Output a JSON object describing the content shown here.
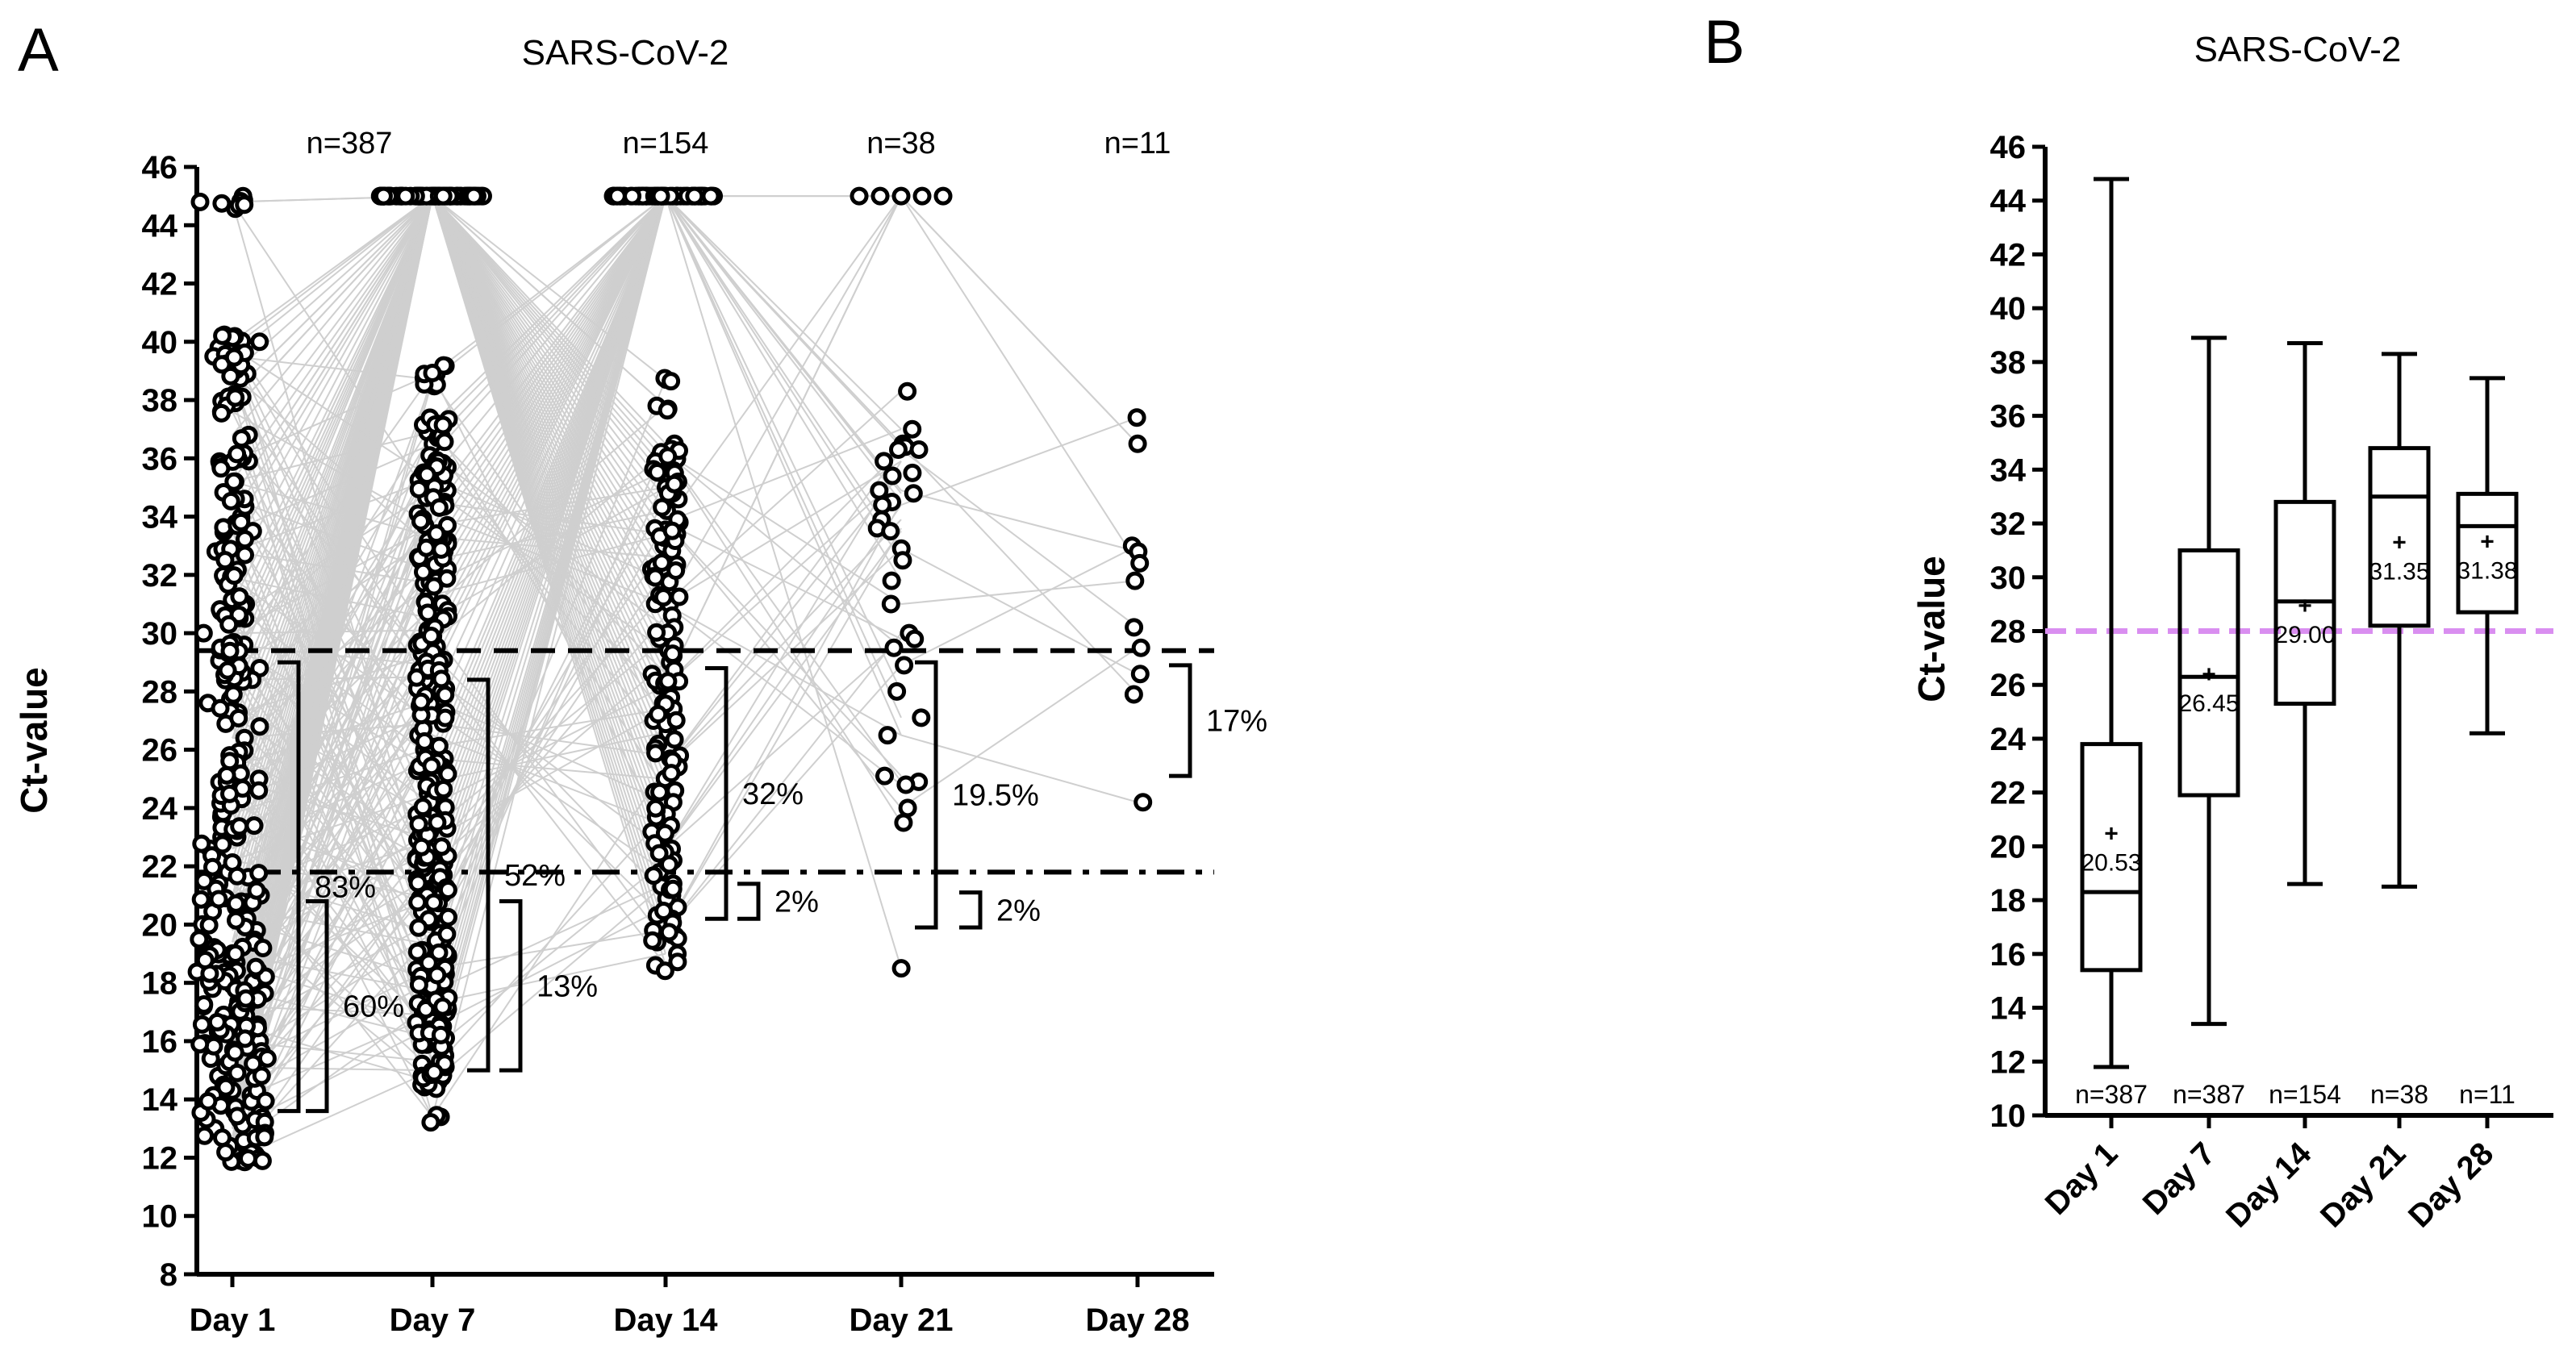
{
  "figure": {
    "panel_a_letter": "A",
    "panel_b_letter": "B"
  },
  "chart_data": [
    {
      "type": "scatter",
      "panel": "A",
      "title": "SARS-CoV-2",
      "xlabel": "",
      "ylabel": "Ct-value",
      "ylim": [
        8,
        46
      ],
      "yticks": [
        "8",
        "10",
        "12",
        "14",
        "16",
        "18",
        "20",
        "22",
        "24",
        "26",
        "28",
        "30",
        "32",
        "34",
        "36",
        "38",
        "40",
        "42",
        "44",
        "46"
      ],
      "categories": [
        "Day 1",
        "Day 7",
        "Day 14",
        "Day 21",
        "Day 28"
      ],
      "n_labels": [
        {
          "day": "Day 1",
          "text": "n=387"
        },
        {
          "day": "Day 14",
          "text": "n=154"
        },
        {
          "day": "Day 21",
          "text": "n=38"
        },
        {
          "day": "Day 28",
          "text": "n=11"
        }
      ],
      "negative_value": 45,
      "threshold_lines": [
        {
          "style": "dashed",
          "value": 29.4
        },
        {
          "style": "dash-dot",
          "value": 21.8
        }
      ],
      "series": [
        {
          "name": "Day 1",
          "n": 387,
          "values": [
            44.8,
            40,
            39.8,
            39.5,
            38.9,
            38.2,
            37.6,
            36.8,
            35.9,
            35.2,
            34.6,
            34,
            33.5,
            32.8,
            31.9,
            31,
            30.5,
            30,
            29.6,
            29.2,
            28.8,
            28.4,
            27.6,
            27.2,
            26.8,
            26.4,
            25.9,
            25.4,
            25,
            24.6,
            24.2,
            23.8,
            23.4,
            23,
            22.6,
            22.2,
            21.8,
            21.4,
            21,
            20.6,
            20.2,
            19.8,
            19.4,
            19,
            18.7,
            18.4,
            18.1,
            17.8,
            17.5,
            17.2,
            16.9,
            16.6,
            16.3,
            16,
            15.7,
            15.4,
            15.1,
            14.8,
            14.5,
            14.2,
            13.9,
            13.6,
            13.3,
            13,
            12.7,
            12.4,
            12.1,
            11.9
          ]
        },
        {
          "name": "Day 7",
          "n": 387,
          "negatives": 87,
          "values": [
            38.9,
            38.7,
            37.2,
            36.9,
            36.5,
            36.1,
            35.7,
            35.3,
            34.9,
            34.5,
            34.1,
            33.7,
            33.3,
            32.9,
            32.5,
            32.1,
            31.7,
            31.3,
            30.9,
            30.5,
            30.1,
            29.7,
            29.3,
            28.9,
            28.5,
            28.1,
            27.7,
            27.3,
            26.9,
            26.5,
            26.1,
            25.7,
            25.3,
            24.9,
            24.5,
            24.1,
            23.7,
            23.3,
            22.9,
            22.5,
            22.1,
            21.7,
            21.3,
            20.9,
            20.5,
            20.1,
            19.7,
            19.3,
            18.9,
            18.5,
            18.1,
            17.7,
            17.3,
            16.9,
            16.5,
            16.1,
            15.7,
            15.3,
            15,
            14.6,
            13.4
          ]
        },
        {
          "name": "Day 14",
          "n": 154,
          "negatives": 60,
          "values": [
            38.7,
            37.8,
            36.5,
            36.2,
            35.9,
            35.6,
            35.3,
            35,
            34.6,
            34.2,
            33.8,
            33.4,
            33,
            32.6,
            32.2,
            31.8,
            31.4,
            31,
            30.6,
            30.2,
            29.8,
            29.4,
            29,
            28.6,
            28.2,
            27.8,
            27.4,
            27,
            26.6,
            26.2,
            25.8,
            25.4,
            25,
            24.6,
            24.2,
            23.8,
            23.4,
            23,
            22.6,
            22.2,
            21.8,
            21.4,
            21,
            20.6,
            20.2,
            19.8,
            19.4,
            19,
            18.6
          ]
        },
        {
          "name": "Day 21",
          "n": 38,
          "values": [
            45,
            45,
            45,
            45,
            45,
            38.3,
            37,
            36.5,
            36.4,
            36.3,
            36.3,
            35.9,
            35.5,
            35.4,
            34.9,
            34.8,
            34.5,
            34.4,
            33.9,
            33.6,
            33.5,
            32.9,
            32.5,
            31.8,
            31,
            30,
            29.8,
            29.5,
            28.9,
            28,
            27.1,
            26.5,
            25.1,
            24.9,
            24.8,
            24,
            23.5,
            18.5
          ]
        },
        {
          "name": "Day 28",
          "n": 11,
          "values": [
            37.4,
            36.5,
            33,
            32.8,
            32.4,
            31.8,
            30.2,
            29.5,
            28.6,
            27.9,
            24.2
          ]
        }
      ],
      "brackets": [
        {
          "label": "83%",
          "from": 13.6,
          "to": 29
        },
        {
          "label": "60%",
          "from": 13.6,
          "to": 20.8
        },
        {
          "label": "52%",
          "from": 15,
          "to": 28.4
        },
        {
          "label": "13%",
          "from": 15,
          "to": 20.8
        },
        {
          "label": "32%",
          "from": 20.2,
          "to": 28.8
        },
        {
          "label": "2%",
          "from": 20.2,
          "to": 21.4
        },
        {
          "label": "19.5%",
          "from": 19.9,
          "to": 29
        },
        {
          "label": "2%",
          "from": 19.9,
          "to": 21.1
        },
        {
          "label": "17%",
          "from": 25.1,
          "to": 28.9
        }
      ]
    },
    {
      "type": "box",
      "panel": "B",
      "title": "SARS-CoV-2",
      "xlabel": "",
      "ylabel": "Ct-value",
      "ylim": [
        10,
        46
      ],
      "yticks": [
        "10",
        "12",
        "14",
        "16",
        "18",
        "20",
        "22",
        "24",
        "26",
        "28",
        "30",
        "32",
        "34",
        "36",
        "38",
        "40",
        "42",
        "44",
        "46"
      ],
      "categories": [
        "Day 1",
        "Day 7",
        "Day 14",
        "Day 21",
        "Day 28"
      ],
      "reference_line": {
        "value": 28,
        "color": "#d98ef0"
      },
      "boxes": [
        {
          "name": "Day 1",
          "min": 11.8,
          "q1": 15.4,
          "median": 18.3,
          "q3": 23.8,
          "max": 44.8,
          "mean": 20.53,
          "mean_label": "20.53",
          "n_label": "n=387"
        },
        {
          "name": "Day 7",
          "min": 13.4,
          "q1": 21.9,
          "median": 26.3,
          "q3": 31,
          "max": 38.9,
          "mean": 26.45,
          "mean_label": "26.45",
          "n_label": "n=387"
        },
        {
          "name": "Day 14",
          "min": 18.6,
          "q1": 25.3,
          "median": 29.1,
          "q3": 32.8,
          "max": 38.7,
          "mean": 29.0,
          "mean_label": "29.00",
          "n_label": "n=154"
        },
        {
          "name": "Day 21",
          "min": 18.5,
          "q1": 28.2,
          "median": 33,
          "q3": 34.8,
          "max": 38.3,
          "mean": 31.35,
          "mean_label": "31.35",
          "n_label": "n=38"
        },
        {
          "name": "Day 28",
          "min": 24.2,
          "q1": 28.7,
          "median": 31.9,
          "q3": 33.1,
          "max": 37.4,
          "mean": 31.38,
          "mean_label": "31.38",
          "n_label": "n=11"
        }
      ]
    }
  ]
}
